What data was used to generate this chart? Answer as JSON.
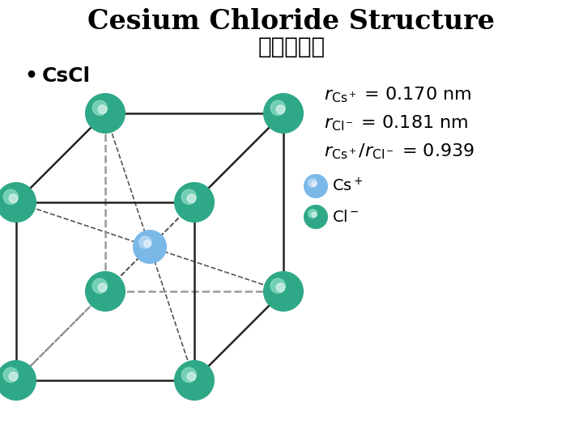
{
  "title_en": "Cesium Chloride Structure",
  "title_cn": "氯化銃結構",
  "bullet_text": "CsCl",
  "bg_color": "#ffffff",
  "cs_color": "#7ab8e8",
  "cs_highlight": "#c0dcf5",
  "cs_edge": "#4a88b8",
  "cl_color": "#2fa888",
  "cl_highlight": "#90e0c8",
  "cl_edge": "#1a7860",
  "edge_solid_color": "#222222",
  "edge_dashed_color": "#999999",
  "diag_color": "#555555",
  "cube_lw": 1.8,
  "diag_lw": 1.2,
  "cl_r": 24,
  "cs_r": 20
}
